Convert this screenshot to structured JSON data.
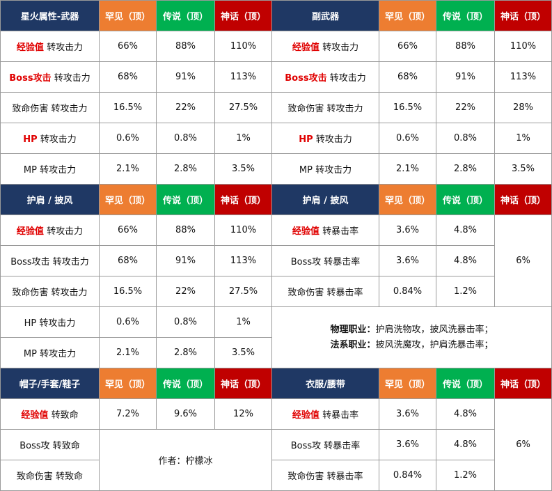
{
  "colors": {
    "header_navy": "#1f3864",
    "rare_orange": "#ed7d31",
    "legendary_green": "#00b050",
    "mythic_red": "#c00000",
    "highlight_red": "#e00000",
    "border_gray": "#9a9a9a"
  },
  "tier_headers": {
    "rare": "罕见（顶）",
    "legendary": "传说（顶）",
    "mythic": "神话（顶）"
  },
  "sections": {
    "star_weapon": {
      "title": "星火属性-武器",
      "rows": [
        {
          "highlight": "经验值",
          "label": " 转攻击力",
          "rare": "66%",
          "legendary": "88%",
          "mythic": "110%"
        },
        {
          "highlight": "Boss攻击",
          "label": " 转攻击力",
          "rare": "68%",
          "legendary": "91%",
          "mythic": "113%"
        },
        {
          "highlight": "",
          "label": "致命伤害 转攻击力",
          "rare": "16.5%",
          "legendary": "22%",
          "mythic": "27.5%"
        },
        {
          "highlight": "HP",
          "label": " 转攻击力",
          "rare": "0.6%",
          "legendary": "0.8%",
          "mythic": "1%"
        },
        {
          "highlight": "",
          "label": "MP 转攻击力",
          "rare": "2.1%",
          "legendary": "2.8%",
          "mythic": "3.5%"
        }
      ]
    },
    "secondary": {
      "title": "副武器",
      "rows": [
        {
          "highlight": "经验值",
          "label": " 转攻击力",
          "rare": "66%",
          "legendary": "88%",
          "mythic": "110%"
        },
        {
          "highlight": "Boss攻击",
          "label": " 转攻击力",
          "rare": "68%",
          "legendary": "91%",
          "mythic": "113%"
        },
        {
          "highlight": "",
          "label": "致命伤害 转攻击力",
          "rare": "16.5%",
          "legendary": "22%",
          "mythic": "28%"
        },
        {
          "highlight": "HP",
          "label": " 转攻击力",
          "rare": "0.6%",
          "legendary": "0.8%",
          "mythic": "1%"
        },
        {
          "highlight": "",
          "label": "MP 转攻击力",
          "rare": "2.1%",
          "legendary": "2.8%",
          "mythic": "3.5%"
        }
      ]
    },
    "shoulder_cape_atk": {
      "title": "护肩 / 披风",
      "rows": [
        {
          "highlight": "经验值",
          "label": " 转攻击力",
          "rare": "66%",
          "legendary": "88%",
          "mythic": "110%"
        },
        {
          "highlight": "",
          "label": "Boss攻击 转攻击力",
          "rare": "68%",
          "legendary": "91%",
          "mythic": "113%"
        },
        {
          "highlight": "",
          "label": "致命伤害 转攻击力",
          "rare": "16.5%",
          "legendary": "22%",
          "mythic": "27.5%"
        },
        {
          "highlight": "",
          "label": "HP 转攻击力",
          "rare": "0.6%",
          "legendary": "0.8%",
          "mythic": "1%"
        },
        {
          "highlight": "",
          "label": "MP 转攻击力",
          "rare": "2.1%",
          "legendary": "2.8%",
          "mythic": "3.5%"
        }
      ]
    },
    "shoulder_cape_crit": {
      "title": "护肩 / 披风",
      "mythic_merged": "6%",
      "rows": [
        {
          "highlight": "经验值",
          "label": " 转暴击率",
          "rare": "3.6%",
          "legendary": "4.8%"
        },
        {
          "highlight": "",
          "label": "Boss攻 转暴击率",
          "rare": "3.6%",
          "legendary": "4.8%"
        },
        {
          "highlight": "",
          "label": "致命伤害 转暴击率",
          "rare": "0.84%",
          "legendary": "1.2%"
        }
      ],
      "notes": {
        "physical_label": "物理职业：",
        "physical_text": "护肩洗物攻，披风洗暴击率；",
        "magic_label": "法系职业：",
        "magic_text": "披风洗魔攻，护肩洗暴击率；"
      }
    },
    "hat_glove_shoe": {
      "title": "帽子/手套/鞋子",
      "rows": [
        {
          "highlight": "经验值",
          "label": " 转致命",
          "rare": "7.2%",
          "legendary": "9.6%",
          "mythic": "12%"
        },
        {
          "highlight": "",
          "label": "Boss攻 转致命"
        },
        {
          "highlight": "",
          "label": "致命伤害 转致命"
        }
      ],
      "author": "作者：柠檬冰"
    },
    "clothes_belt": {
      "title": "衣服/腰带",
      "mythic_merged": "6%",
      "rows": [
        {
          "highlight": "经验值",
          "label": " 转暴击率",
          "rare": "3.6%",
          "legendary": "4.8%"
        },
        {
          "highlight": "",
          "label": "Boss攻 转暴击率",
          "rare": "3.6%",
          "legendary": "4.8%"
        },
        {
          "highlight": "",
          "label": "致命伤害 转暴击率",
          "rare": "0.84%",
          "legendary": "1.2%"
        }
      ]
    }
  }
}
